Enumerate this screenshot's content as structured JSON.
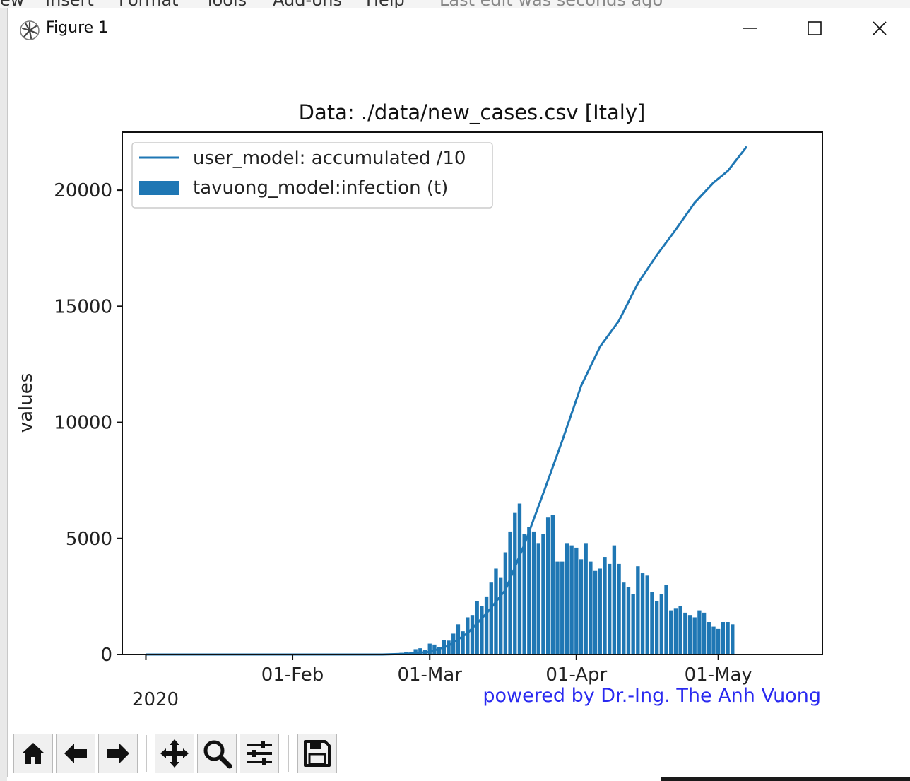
{
  "background_app": {
    "menu": [
      "ew",
      "Insert",
      "Format",
      "Tools",
      "Add-ons",
      "Help",
      "Last edit was seconds ago"
    ]
  },
  "window": {
    "title": "Figure 1",
    "icon": "matplotlib-logo-icon",
    "controls": [
      "minimize-icon",
      "maximize-icon",
      "close-icon"
    ]
  },
  "toolbar": {
    "buttons": [
      {
        "name": "home-button",
        "icon": "home-icon"
      },
      {
        "name": "back-button",
        "icon": "arrow-left-icon"
      },
      {
        "name": "forward-button",
        "icon": "arrow-right-icon"
      },
      {
        "name": "pan-button",
        "icon": "move-icon"
      },
      {
        "name": "zoom-button",
        "icon": "magnifier-icon"
      },
      {
        "name": "configure-subplots-button",
        "icon": "sliders-icon"
      },
      {
        "name": "save-button",
        "icon": "floppy-disk-icon"
      }
    ]
  },
  "chart_data": {
    "type": "bar",
    "title": "Data: ./data/new_cases.csv [Italy]",
    "xlabel": "",
    "ylabel": "values",
    "ylim": [
      0,
      22500
    ],
    "yticks": [
      0,
      5000,
      10000,
      15000,
      20000
    ],
    "ytick_labels": [
      "0",
      "5000",
      "10000",
      "15000",
      "20000"
    ],
    "xlim": [
      "2019-12-27",
      "2020-05-23"
    ],
    "xticks": [
      "2020-01-01",
      "2020-02-01",
      "2020-03-01",
      "2020-04-01",
      "2020-05-01"
    ],
    "xtick_labels": [
      "",
      "01-Feb",
      "01-Mar",
      "01-Apr",
      "01-May"
    ],
    "xaxis_offset_label": "2020",
    "annotation": "powered by Dr.-Ing. The Anh Vuong",
    "annotation_color": "#2a2af0",
    "color": "#1f77b4",
    "legend": {
      "placement": "top-left",
      "entries": [
        {
          "label": "user_model: accumulated /10",
          "kind": "line"
        },
        {
          "label": "tavuong_model:infection (t)",
          "kind": "bar"
        }
      ]
    },
    "series": [
      {
        "name": "user_model: accumulated /10",
        "kind": "line",
        "x": [
          "2020-01-01",
          "2020-02-20",
          "2020-02-25",
          "2020-03-01",
          "2020-03-05",
          "2020-03-09",
          "2020-03-13",
          "2020-03-17",
          "2020-03-21",
          "2020-03-25",
          "2020-03-29",
          "2020-04-02",
          "2020-04-06",
          "2020-04-10",
          "2020-04-14",
          "2020-04-18",
          "2020-04-22",
          "2020-04-26",
          "2020-04-30",
          "2020-05-03",
          "2020-05-07"
        ],
        "values": [
          0,
          0,
          30,
          110,
          380,
          920,
          1770,
          2780,
          4740,
          6940,
          9200,
          11570,
          13260,
          14380,
          15990,
          17200,
          18300,
          19460,
          20330,
          20830,
          21880
        ]
      },
      {
        "name": "tavuong_model:infection (t)",
        "kind": "bar",
        "x_start": "2020-02-22",
        "values": [
          20,
          30,
          70,
          100,
          80,
          230,
          270,
          200,
          470,
          430,
          310,
          620,
          600,
          900,
          1300,
          1000,
          1600,
          1700,
          2300,
          2100,
          2500,
          3100,
          3700,
          3300,
          4400,
          5300,
          6100,
          6500,
          5200,
          5500,
          5300,
          4800,
          5200,
          5900,
          6000,
          4000,
          4000,
          4800,
          4700,
          4600,
          4100,
          4800,
          4000,
          3600,
          3700,
          4200,
          3900,
          4700,
          3900,
          3100,
          2900,
          2600,
          3800,
          3500,
          3400,
          2700,
          2300,
          2600,
          3000,
          1900,
          2000,
          2100,
          1800,
          1700,
          1600,
          1900,
          1800,
          1400,
          1200,
          1100,
          1400,
          1400,
          1300
        ]
      }
    ]
  }
}
